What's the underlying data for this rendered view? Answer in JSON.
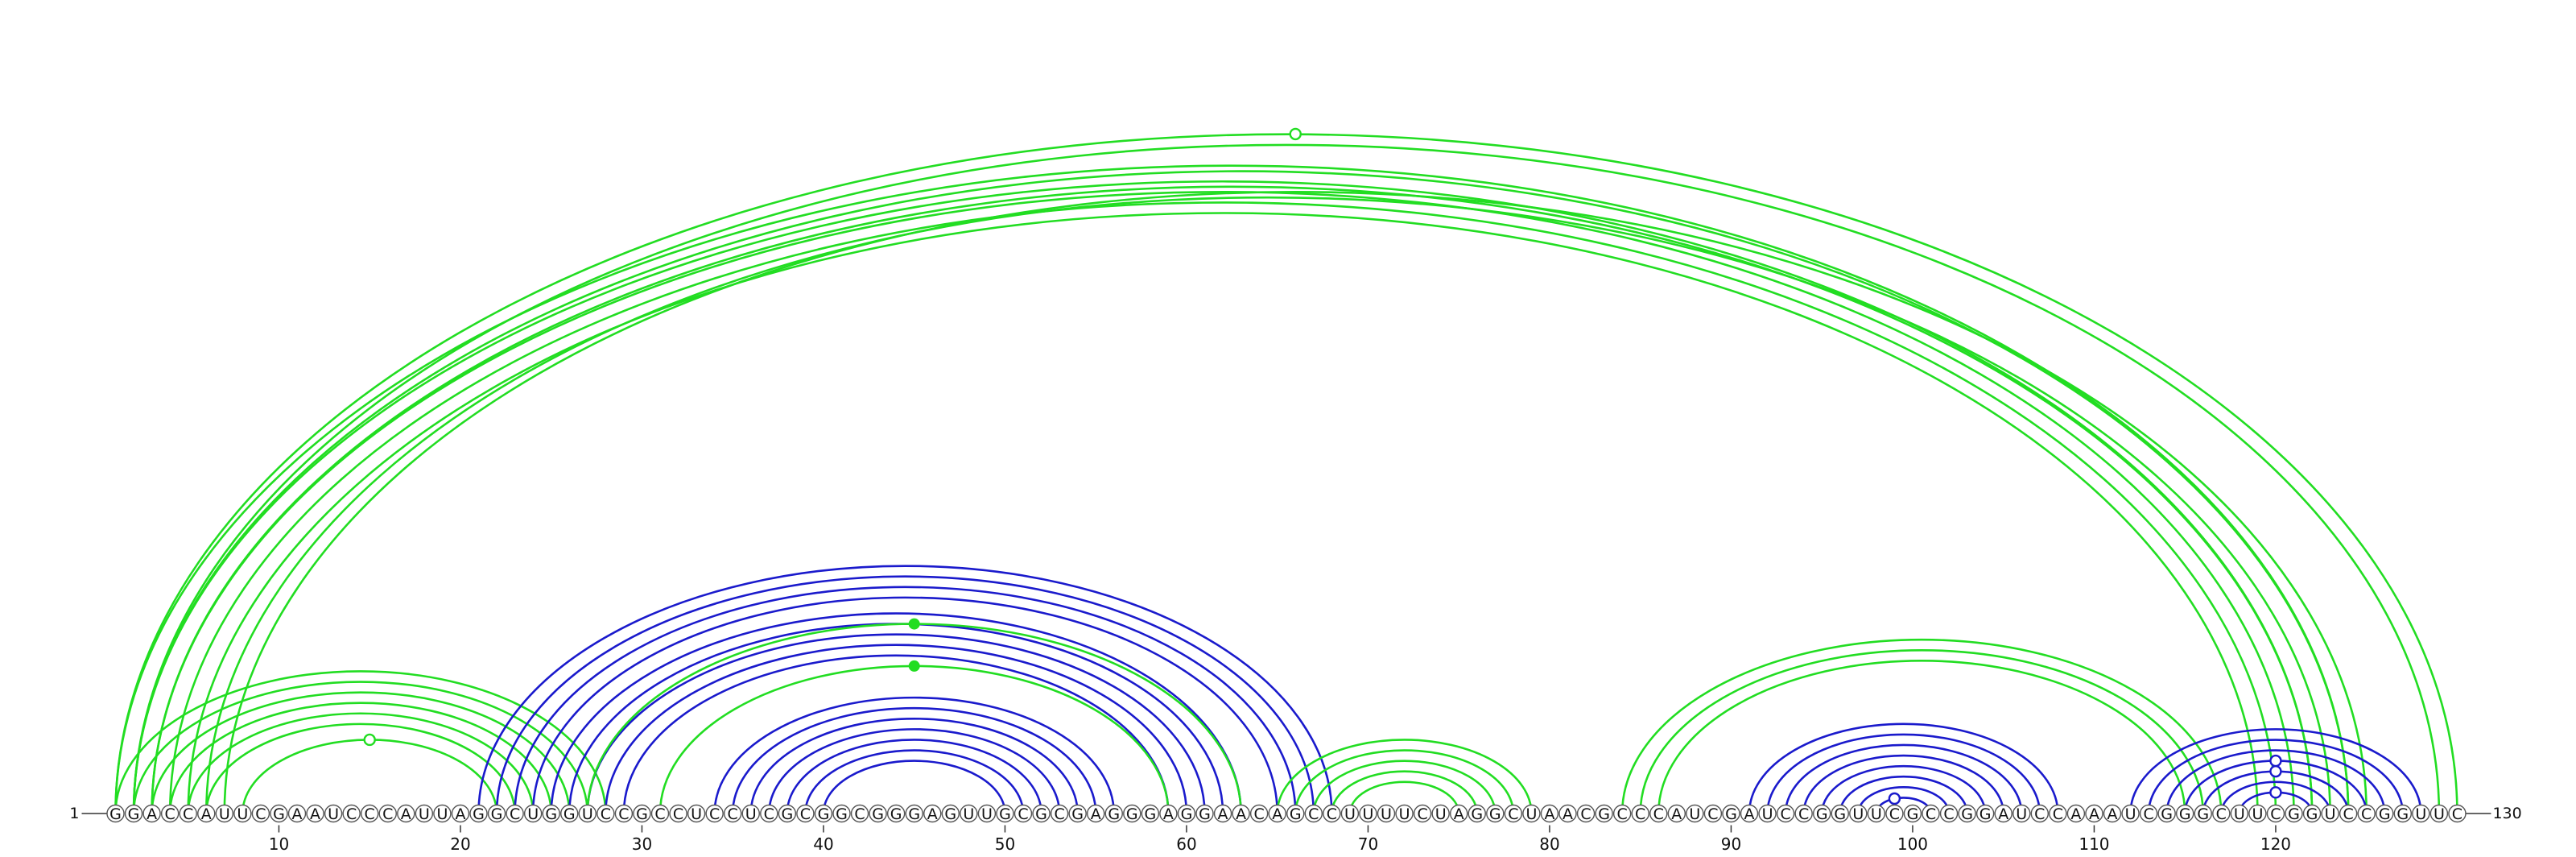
{
  "sequence": "GGACCAUUCGAAUCCCAUUAGGCUGGUCCGCCUCCUCGCGGCGGGAGUUGCGCGAGGGAGGAACAGCCUUUUCUAGGCUAACGCCCAUCGAUCCGGUUCGCCGGAUCCAAAUCGGGCUUCGGUCCGGUUC",
  "start_label": "1",
  "end_label": "130",
  "ticks": [
    10,
    20,
    30,
    40,
    50,
    60,
    70,
    80,
    90,
    100,
    110,
    120
  ],
  "colors": {
    "green": "#22dd22",
    "blue": "#1a1acc",
    "nucleotide_outline": "#555555"
  },
  "arcs": [
    {
      "i": 1,
      "j": 124,
      "color": "green"
    },
    {
      "i": 2,
      "j": 124,
      "color": "green"
    },
    {
      "i": 2,
      "j": 122,
      "color": "green"
    },
    {
      "i": 3,
      "j": 122,
      "color": "green"
    },
    {
      "i": 3,
      "j": 121,
      "color": "green"
    },
    {
      "i": 4,
      "j": 120,
      "color": "green"
    },
    {
      "i": 5,
      "j": 119,
      "color": "green"
    },
    {
      "i": 6,
      "j": 123,
      "color": "green"
    },
    {
      "i": 7,
      "j": 125,
      "color": "green"
    },
    {
      "i": 1,
      "j": 130,
      "color": "green"
    },
    {
      "i": 2,
      "j": 129,
      "color": "green"
    },
    {
      "i": 1,
      "j": 28,
      "color": "green"
    },
    {
      "i": 2,
      "j": 27,
      "color": "green"
    },
    {
      "i": 3,
      "j": 26,
      "color": "green"
    },
    {
      "i": 4,
      "j": 25,
      "color": "green"
    },
    {
      "i": 5,
      "j": 24,
      "color": "green"
    },
    {
      "i": 6,
      "j": 23,
      "color": "green"
    },
    {
      "i": 8,
      "j": 22,
      "color": "green"
    },
    {
      "i": 21,
      "j": 68,
      "color": "blue"
    },
    {
      "i": 22,
      "j": 67,
      "color": "blue"
    },
    {
      "i": 23,
      "j": 66,
      "color": "blue"
    },
    {
      "i": 24,
      "j": 65,
      "color": "blue"
    },
    {
      "i": 25,
      "j": 63,
      "color": "blue"
    },
    {
      "i": 26,
      "j": 62,
      "color": "blue"
    },
    {
      "i": 27,
      "j": 61,
      "color": "blue"
    },
    {
      "i": 28,
      "j": 60,
      "color": "blue"
    },
    {
      "i": 29,
      "j": 59,
      "color": "blue"
    },
    {
      "i": 34,
      "j": 56,
      "color": "blue"
    },
    {
      "i": 35,
      "j": 55,
      "color": "blue"
    },
    {
      "i": 36,
      "j": 54,
      "color": "blue"
    },
    {
      "i": 37,
      "j": 53,
      "color": "blue"
    },
    {
      "i": 38,
      "j": 52,
      "color": "blue"
    },
    {
      "i": 39,
      "j": 51,
      "color": "blue"
    },
    {
      "i": 40,
      "j": 50,
      "color": "blue"
    },
    {
      "i": 27,
      "j": 63,
      "color": "green"
    },
    {
      "i": 31,
      "j": 59,
      "color": "green"
    },
    {
      "i": 65,
      "j": 79,
      "color": "green"
    },
    {
      "i": 66,
      "j": 78,
      "color": "green"
    },
    {
      "i": 67,
      "j": 77,
      "color": "green"
    },
    {
      "i": 68,
      "j": 76,
      "color": "green"
    },
    {
      "i": 69,
      "j": 75,
      "color": "green"
    },
    {
      "i": 84,
      "j": 117,
      "color": "green"
    },
    {
      "i": 85,
      "j": 116,
      "color": "green"
    },
    {
      "i": 86,
      "j": 115,
      "color": "green"
    },
    {
      "i": 91,
      "j": 108,
      "color": "blue"
    },
    {
      "i": 92,
      "j": 107,
      "color": "blue"
    },
    {
      "i": 93,
      "j": 106,
      "color": "blue"
    },
    {
      "i": 94,
      "j": 105,
      "color": "blue"
    },
    {
      "i": 95,
      "j": 104,
      "color": "blue"
    },
    {
      "i": 96,
      "j": 103,
      "color": "blue"
    },
    {
      "i": 97,
      "j": 102,
      "color": "blue"
    },
    {
      "i": 98,
      "j": 101,
      "color": "blue"
    },
    {
      "i": 112,
      "j": 128,
      "color": "blue"
    },
    {
      "i": 113,
      "j": 127,
      "color": "blue"
    },
    {
      "i": 114,
      "j": 126,
      "color": "blue"
    },
    {
      "i": 115,
      "j": 125,
      "color": "blue"
    },
    {
      "i": 116,
      "j": 124,
      "color": "blue"
    },
    {
      "i": 117,
      "j": 123,
      "color": "blue"
    },
    {
      "i": 118,
      "j": 122,
      "color": "blue"
    }
  ],
  "markers": [
    {
      "pos": 66,
      "arc": 9,
      "style": "open",
      "color": "green"
    },
    {
      "pos": 15,
      "arc": 17,
      "style": "open",
      "color": "green"
    },
    {
      "pos": 45,
      "arc": 34,
      "style": "filled",
      "color": "green"
    },
    {
      "pos": 45,
      "arc": 35,
      "style": "filled",
      "color": "green"
    },
    {
      "pos": 99,
      "arc": 51,
      "style": "open",
      "color": "blue"
    },
    {
      "pos": 120,
      "arc": 55,
      "style": "open",
      "color": "blue"
    },
    {
      "pos": 120,
      "arc": 56,
      "style": "open",
      "color": "blue"
    },
    {
      "pos": 120,
      "arc": 58,
      "style": "open",
      "color": "blue"
    }
  ]
}
